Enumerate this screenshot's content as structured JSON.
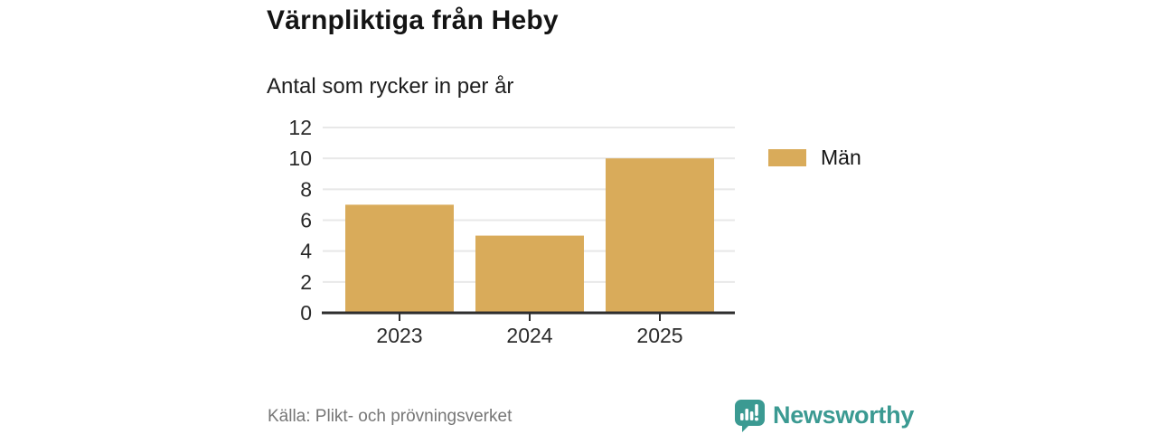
{
  "title": "Värnpliktiga från Heby",
  "subtitle": "Antal som rycker in per år",
  "legend": {
    "label": "Män"
  },
  "footer": {
    "source": "Källa: Plikt- och prövningsverket",
    "brand": "Newsworthy"
  },
  "colors": {
    "bar": "#d9ab5a",
    "axis": "#2e2e2e",
    "grid": "#e8e8e8",
    "tick_text": "#2b2b2b",
    "brand_teal": "#3b9a92",
    "source_text": "#767676"
  },
  "chart_data": {
    "type": "bar",
    "categories": [
      "2023",
      "2024",
      "2025"
    ],
    "series": [
      {
        "name": "Män",
        "values": [
          7,
          5,
          10
        ]
      }
    ],
    "title": "Värnpliktiga från Heby",
    "subtitle": "Antal som rycker in per år",
    "xlabel": "",
    "ylabel": "",
    "ylim": [
      0,
      12
    ],
    "yticks": [
      0,
      2,
      4,
      6,
      8,
      10,
      12
    ],
    "grid": "horizontal",
    "legend_position": "right"
  }
}
